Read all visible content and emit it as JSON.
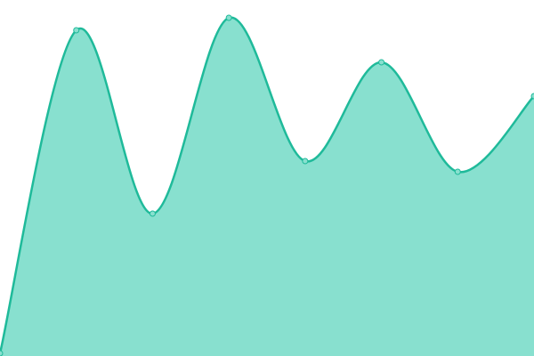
{
  "chart_data": {
    "type": "area",
    "categories": [
      null,
      null,
      null,
      null,
      null,
      null,
      null,
      null
    ],
    "series": [
      {
        "values": [
          3,
          366,
          160,
          380,
          219,
          330,
          207,
          292
        ],
        "color": "#1fba9a",
        "fill": "#88e0cf"
      }
    ],
    "ylim": [
      0,
      400
    ]
  }
}
